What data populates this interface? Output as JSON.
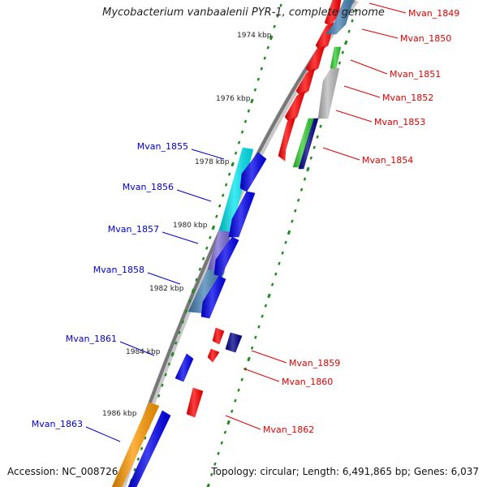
{
  "title": "Mycobacterium vanbaalenii PYR-1, complete genome",
  "accession": "Accession: NC_008726",
  "summary": "Topology: circular; Length: 6,491,865 bp; Genes: 6,037",
  "colors": {
    "background": "#ffffff",
    "backbone": "#888888",
    "forward_tick": "#228822",
    "red": "#ff0000",
    "blue": "#0000ee",
    "navy": "#000088",
    "cyan": "#00e5ee",
    "steelblue": "#4682b4",
    "slateblue": "#7a6bd6",
    "green": "#33cc33",
    "silver": "#bbbbbb",
    "orange": "#ff9900",
    "reverse_label": "#dd0000",
    "forward_label": "#0000cc"
  },
  "scale_labels": [
    "1974 kbp",
    "1976 kbp",
    "1978 kbp",
    "1980 kbp",
    "1982 kbp",
    "1984 kbp",
    "1986 kbp"
  ],
  "genes": [
    {
      "label": "Mvan_1849",
      "strand": "reverse"
    },
    {
      "label": "Mvan_1850",
      "strand": "reverse"
    },
    {
      "label": "Mvan_1851",
      "strand": "reverse"
    },
    {
      "label": "Mvan_1852",
      "strand": "reverse"
    },
    {
      "label": "Mvan_1853",
      "strand": "reverse"
    },
    {
      "label": "Mvan_1854",
      "strand": "reverse"
    },
    {
      "label": "Mvan_1855",
      "strand": "forward"
    },
    {
      "label": "Mvan_1856",
      "strand": "forward"
    },
    {
      "label": "Mvan_1857",
      "strand": "forward"
    },
    {
      "label": "Mvan_1858",
      "strand": "forward"
    },
    {
      "label": "Mvan_1859",
      "strand": "reverse"
    },
    {
      "label": "Mvan_1860",
      "strand": "reverse"
    },
    {
      "label": "Mvan_1861",
      "strand": "forward"
    },
    {
      "label": "Mvan_1862",
      "strand": "reverse"
    },
    {
      "label": "Mvan_1863",
      "strand": "forward"
    }
  ]
}
